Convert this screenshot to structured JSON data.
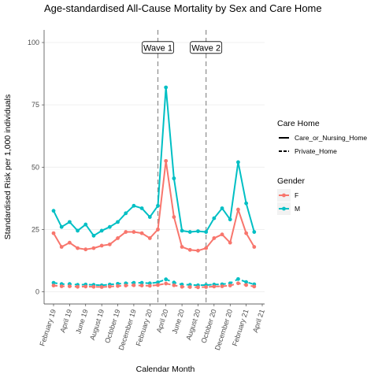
{
  "chart_data": {
    "type": "line",
    "title": "Age-standardised All-Cause Mortality by Sex and Care Home",
    "xlabel": "Calendar Month",
    "ylabel": "Standardised Risk per 1,000 individuals",
    "ylim": [
      0,
      100
    ],
    "yticks": [
      0,
      25,
      50,
      75,
      100
    ],
    "xlim": [
      "2019-02",
      "2021-04"
    ],
    "xticks": [
      "February 19",
      "April 19",
      "June 19",
      "August 19",
      "October 19",
      "December 19",
      "February 20",
      "April 20",
      "June 20",
      "August 20",
      "October 20",
      "December 20",
      "February 21",
      "April 21"
    ],
    "grid": true,
    "legend_position": "right",
    "x": [
      "2019-02",
      "2019-03",
      "2019-04",
      "2019-05",
      "2019-06",
      "2019-07",
      "2019-08",
      "2019-09",
      "2019-10",
      "2019-11",
      "2019-12",
      "2020-01",
      "2020-02",
      "2020-03",
      "2020-04",
      "2020-05",
      "2020-06",
      "2020-07",
      "2020-08",
      "2020-09",
      "2020-10",
      "2020-11",
      "2020-12",
      "2021-01",
      "2021-02",
      "2021-03"
    ],
    "series": [
      {
        "gender": "M",
        "care_home": "Care_or_Nursing_Home",
        "values": [
          32.5,
          26,
          28,
          24.5,
          27,
          22.5,
          24.5,
          26,
          28,
          31.5,
          34.5,
          33.5,
          30,
          34.5,
          82,
          45.5,
          24.5,
          24,
          24.3,
          24,
          29.5,
          33.5,
          29,
          52,
          35.5,
          24
        ]
      },
      {
        "gender": "F",
        "care_home": "Care_or_Nursing_Home",
        "values": [
          23.5,
          18,
          19.7,
          17.5,
          17,
          17.5,
          18.5,
          19,
          21.5,
          24,
          24,
          23.5,
          21.5,
          25,
          52.5,
          30,
          18,
          16.8,
          16.5,
          17.5,
          21.5,
          23,
          19.7,
          33,
          23.5,
          18
        ]
      },
      {
        "gender": "M",
        "care_home": "Private_Home",
        "values": [
          3.6,
          3.1,
          3.1,
          2.8,
          2.9,
          2.8,
          2.6,
          2.9,
          3.2,
          3.4,
          3.6,
          3.6,
          3.4,
          3.8,
          5,
          3.7,
          2.9,
          2.8,
          2.6,
          2.7,
          2.9,
          3,
          3.4,
          5.1,
          3.9,
          3
        ]
      },
      {
        "gender": "F",
        "care_home": "Private_Home",
        "values": [
          2.5,
          2.2,
          2.2,
          2,
          2.1,
          2,
          1.9,
          2.1,
          2.3,
          2.5,
          2.6,
          2.5,
          2.4,
          2.7,
          3.3,
          2.6,
          2,
          1.9,
          1.8,
          1.9,
          2.1,
          2.2,
          2.5,
          3.4,
          2.7,
          2.1
        ]
      }
    ],
    "annotations": [
      {
        "label": "Wave 1",
        "x": "2020-03",
        "y": 98
      },
      {
        "label": "Wave 2",
        "x": "2020-09",
        "y": 98
      }
    ],
    "vlines": [
      "2020-03",
      "2020-09"
    ],
    "colors": {
      "F": "#F8766D",
      "M": "#00BFC4"
    },
    "legend": {
      "care_home_title": "Care Home",
      "care_home_items": [
        "Care_or_Nursing_Home",
        "Private_Home"
      ],
      "gender_title": "Gender",
      "gender_items": [
        "F",
        "M"
      ]
    }
  }
}
